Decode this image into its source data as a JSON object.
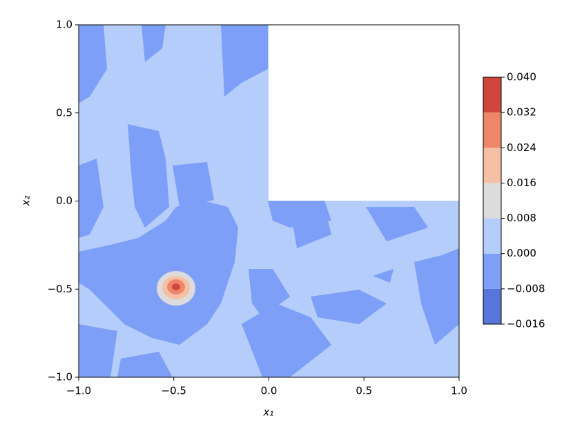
{
  "chart_data": {
    "type": "contourf",
    "xlabel": "x₁",
    "ylabel": "x₂",
    "xlim": [
      -1.0,
      1.0
    ],
    "ylim": [
      -1.0,
      1.0
    ],
    "xticks": [
      {
        "value": -1.0,
        "label": "−1.0"
      },
      {
        "value": -0.5,
        "label": "−0.5"
      },
      {
        "value": 0.0,
        "label": "0.0"
      },
      {
        "value": 0.5,
        "label": "0.5"
      },
      {
        "value": 1.0,
        "label": "1.0"
      }
    ],
    "yticks": [
      {
        "value": -1.0,
        "label": "−1.0"
      },
      {
        "value": -0.5,
        "label": "−0.5"
      },
      {
        "value": 0.0,
        "label": "0.0"
      },
      {
        "value": 0.5,
        "label": "0.5"
      },
      {
        "value": 1.0,
        "label": "1.0"
      }
    ],
    "levels": [
      {
        "value": -0.016,
        "label": "−0.016"
      },
      {
        "value": -0.008,
        "label": "−0.008"
      },
      {
        "value": 0.0,
        "label": "0.000"
      },
      {
        "value": 0.008,
        "label": "0.008"
      },
      {
        "value": 0.016,
        "label": "0.016"
      },
      {
        "value": 0.024,
        "label": "0.024"
      },
      {
        "value": 0.032,
        "label": "0.032"
      },
      {
        "value": 0.04,
        "label": "0.040"
      }
    ],
    "level_colors": [
      "#5875db",
      "#7d9ff7",
      "#b5cdfa",
      "#dcdcdc",
      "#f5c0a6",
      "#ee8669",
      "#d0463c"
    ]
  }
}
